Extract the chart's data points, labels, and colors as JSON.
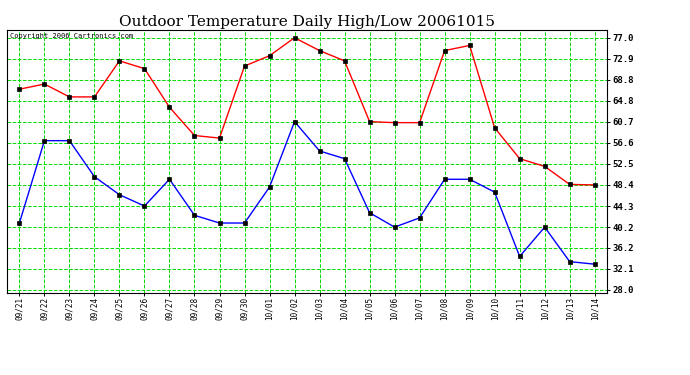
{
  "title": "Outdoor Temperature Daily High/Low 20061015",
  "copyright": "Copyright 2006 Cartronics.com",
  "dates": [
    "09/21",
    "09/22",
    "09/23",
    "09/24",
    "09/25",
    "09/26",
    "09/27",
    "09/28",
    "09/29",
    "09/30",
    "10/01",
    "10/02",
    "10/03",
    "10/04",
    "10/05",
    "10/06",
    "10/07",
    "10/08",
    "10/09",
    "10/10",
    "10/11",
    "10/12",
    "10/13",
    "10/14"
  ],
  "high": [
    67.0,
    68.0,
    65.5,
    65.5,
    72.5,
    71.0,
    63.5,
    58.0,
    57.5,
    71.5,
    73.5,
    77.0,
    74.5,
    72.5,
    60.7,
    60.5,
    60.5,
    74.5,
    75.5,
    59.5,
    53.5,
    52.0,
    48.5,
    48.4
  ],
  "low": [
    41.0,
    57.0,
    57.0,
    50.0,
    46.5,
    44.3,
    49.5,
    42.5,
    41.0,
    41.0,
    48.0,
    60.7,
    55.0,
    53.5,
    43.0,
    40.2,
    42.0,
    49.5,
    49.5,
    47.0,
    34.5,
    40.2,
    33.5,
    33.0
  ],
  "high_color": "#ff0000",
  "low_color": "#0000ff",
  "bg_color": "#ffffff",
  "grid_color": "#00dd00",
  "title_fontsize": 11,
  "ymin": 27.5,
  "ymax": 78.5,
  "yticks": [
    28.0,
    32.1,
    36.2,
    40.2,
    44.3,
    48.4,
    52.5,
    56.6,
    60.7,
    64.8,
    68.8,
    72.9,
    77.0
  ]
}
